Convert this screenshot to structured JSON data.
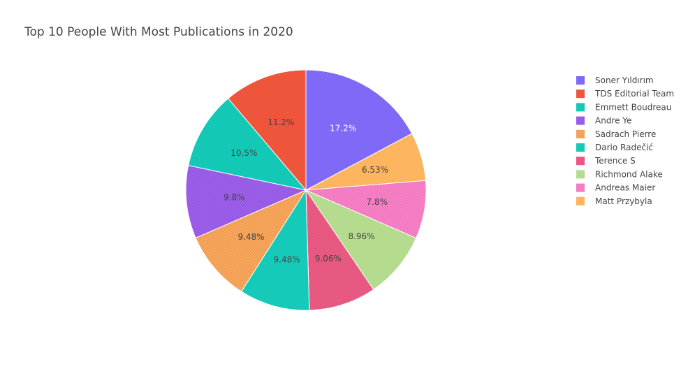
{
  "chart_data": {
    "type": "pie",
    "title": "Top 10 People With Most Publications in 2020",
    "legend_position": "right",
    "direction": "clockwise",
    "labels": [
      "Soner Yıldırım",
      "TDS Editorial Team",
      "Emmett Boudreau",
      "Andre Ye",
      "Sadrach Pierre",
      "Dario Radečić",
      "Terence S",
      "Richmond Alake",
      "Andreas Maier",
      "Matt Przybyla"
    ],
    "values": [
      17.2,
      11.2,
      10.5,
      9.8,
      9.48,
      9.48,
      9.06,
      8.96,
      7.8,
      6.53
    ],
    "text": [
      "17.2%",
      "11.2%",
      "10.5%",
      "9.8%",
      "9.48%",
      "9.48%",
      "9.06%",
      "8.96%",
      "7.8%",
      "6.53%"
    ],
    "colors": [
      "#8069f6",
      "#ee553b",
      "#13c9b6",
      "#a060f0",
      "#fea95c",
      "#15cab8",
      "#f15c86",
      "#b5dc8e",
      "#fe82cb",
      "#fdb560"
    ],
    "patterned": [
      false,
      false,
      false,
      true,
      true,
      false,
      true,
      false,
      true,
      false
    ],
    "label_colors": [
      "#ffffff",
      "#444444",
      "#444444",
      "#444444",
      "#444444",
      "#444444",
      "#444444",
      "#444444",
      "#444444",
      "#444444"
    ]
  }
}
